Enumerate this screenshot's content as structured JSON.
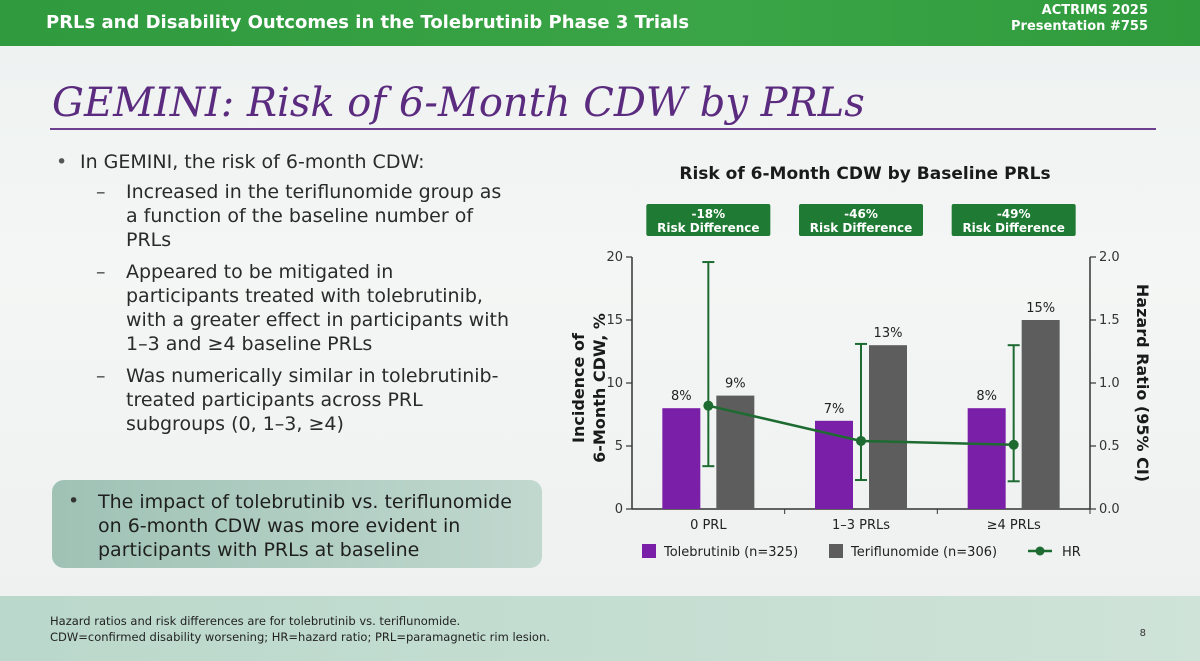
{
  "header": {
    "title": "PRLs and Disability Outcomes in the Tolebrutinib Phase 3 Trials",
    "conference": "ACTRIMS 2025",
    "presentation": "Presentation #755"
  },
  "slide_title": "GEMINI: Risk of 6-Month CDW by PRLs",
  "bullets": {
    "main": "In GEMINI, the risk of 6-month CDW:",
    "sub": [
      "Increased in the teriflunomide group as a function of the baseline number of PRLs",
      "Appeared to be mitigated in participants treated with tolebrutinib, with a greater effect in participants with 1–3 and ≥4 baseline PRLs",
      "Was numerically similar in tolebrutinib-treated participants across PRL subgroups (0, 1–3, ≥4)"
    ]
  },
  "callout": "The impact of tolebrutinib vs. teriflunomide on 6-month CDW was more evident in participants with PRLs at baseline",
  "footer": {
    "line1": "Hazard ratios and risk differences are for tolebrutinib vs. teriflunomide.",
    "line2": "CDW=confirmed disability worsening; HR=hazard ratio; PRL=paramagnetic rim lesion.",
    "page": "8"
  },
  "chart_data": {
    "type": "bar",
    "title": "Risk of 6-Month CDW by Baseline PRLs",
    "categories": [
      "0 PRL",
      "1–3 PRLs",
      "≥4 PRLs"
    ],
    "ylabel_left_line1": "Incidence of",
    "ylabel_left_line2": "6-Month CDW, %",
    "ylabel_right": "Hazard Ratio (95% CI)",
    "ylim_left": [
      0,
      20
    ],
    "yticks_left": [
      "0",
      "5",
      "10",
      "15",
      "20"
    ],
    "ylim_right": [
      0,
      2.0
    ],
    "yticks_right": [
      "0.0",
      "0.5",
      "1.0",
      "1.5",
      "2.0"
    ],
    "series": [
      {
        "name": "Tolebrutinib (n=325)",
        "color": "#7a1fa8",
        "values": [
          8,
          7,
          8
        ],
        "labels": [
          "8%",
          "7%",
          "8%"
        ]
      },
      {
        "name": "Teriflunomide (n=306)",
        "color": "#5d5d5d",
        "values": [
          9,
          13,
          15
        ],
        "labels": [
          "9%",
          "13%",
          "15%"
        ]
      }
    ],
    "hr": {
      "name": "HR",
      "color": "#1e6b32",
      "values": [
        0.82,
        0.54,
        0.51
      ],
      "ci_low": [
        0.34,
        0.23,
        0.22
      ],
      "ci_high": [
        1.96,
        1.31,
        1.3
      ]
    },
    "risk_difference": [
      {
        "value": "-18%",
        "label": "Risk Difference"
      },
      {
        "value": "-46%",
        "label": "Risk Difference"
      },
      {
        "value": "-49%",
        "label": "Risk Difference"
      }
    ],
    "grid": false,
    "legend_position": "bottom"
  }
}
